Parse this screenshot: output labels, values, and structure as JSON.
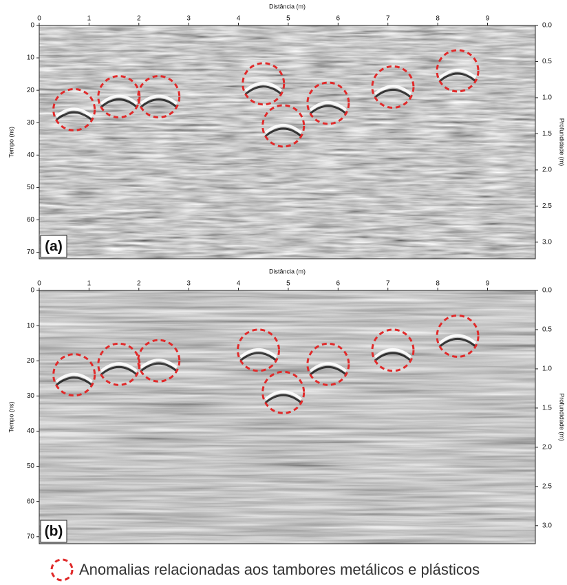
{
  "chart_data": [
    {
      "type": "scatter",
      "title": "(a)",
      "x_label": "Distância (m)",
      "y_label": "Tempo (ns)",
      "y2_label": "Profundidade (m)",
      "xlim": [
        0,
        9.96
      ],
      "xticks": [
        0,
        1,
        2,
        3,
        4,
        5,
        6,
        7,
        8,
        9
      ],
      "ylim": [
        0,
        72
      ],
      "yticks": [
        0,
        10,
        20,
        30,
        40,
        50,
        60,
        70
      ],
      "y_inverted": true,
      "y2lim": [
        0,
        3.23
      ],
      "y2ticks": [
        {
          "value": 0,
          "label": "0.0"
        },
        {
          "value": 0.5,
          "label": "0.5"
        },
        {
          "value": 1,
          "label": "1.0"
        },
        {
          "value": 1.5,
          "label": "1.5"
        },
        {
          "value": 2,
          "label": "2.0"
        },
        {
          "value": 2.5,
          "label": "2.5"
        },
        {
          "value": 3,
          "label": "3.0"
        }
      ],
      "series": [
        {
          "name": "Anomalias relacionadas aos tambores metálicos e plásticos",
          "color": "#e02a2a",
          "x": [
            0.7,
            1.6,
            2.4,
            4.5,
            4.9,
            5.8,
            7.1,
            8.4
          ],
          "values": [
            26,
            22,
            22,
            18,
            31,
            24,
            19,
            14
          ]
        }
      ]
    },
    {
      "type": "scatter",
      "title": "(b)",
      "x_label": "Distância (m)",
      "y_label": "Tempo (ns)",
      "y2_label": "Profundidade (m)",
      "xlim": [
        0,
        9.96
      ],
      "xticks": [
        0,
        1,
        2,
        3,
        4,
        5,
        6,
        7,
        8,
        9
      ],
      "ylim": [
        0,
        72
      ],
      "yticks": [
        0,
        10,
        20,
        30,
        40,
        50,
        60,
        70
      ],
      "y_inverted": true,
      "y2lim": [
        0,
        3.23
      ],
      "y2ticks": [
        {
          "value": 0,
          "label": "0.0"
        },
        {
          "value": 0.5,
          "label": "0.5"
        },
        {
          "value": 1,
          "label": "1.0"
        },
        {
          "value": 1.5,
          "label": "1.5"
        },
        {
          "value": 2,
          "label": "2.0"
        },
        {
          "value": 2.5,
          "label": "2.5"
        },
        {
          "value": 3,
          "label": "3.0"
        }
      ],
      "series": [
        {
          "color": "#e02a2a",
          "x": [
            0.7,
            1.6,
            2.4,
            4.4,
            4.9,
            5.8,
            7.1,
            8.4
          ],
          "values": [
            24,
            21,
            20,
            17,
            29,
            21,
            17,
            13
          ]
        }
      ]
    }
  ]
}
